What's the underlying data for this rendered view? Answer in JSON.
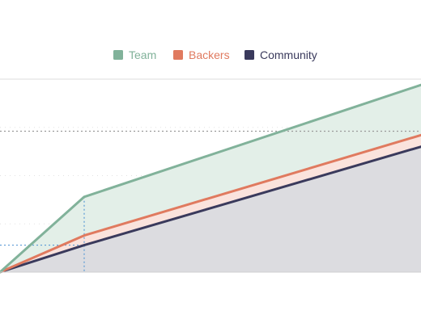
{
  "chart_data": {
    "type": "area",
    "stacked": true,
    "title": "",
    "xlabel": "",
    "ylabel": "",
    "x": [
      0,
      1,
      5
    ],
    "xlim": [
      0,
      5
    ],
    "ylim": [
      0,
      10
    ],
    "grid": true,
    "legend_position": "top-center",
    "series": [
      {
        "name": "Community",
        "color": "#3a3a5c",
        "fill": "#dcdce0",
        "values": [
          0,
          1.4,
          6.5
        ]
      },
      {
        "name": "Backers",
        "color": "#e07a5f",
        "fill": "#fae3dd",
        "values": [
          0,
          0.5,
          0.6
        ]
      },
      {
        "name": "Team",
        "color": "#81b29a",
        "fill": "#e3efe8",
        "values": [
          0,
          2.0,
          2.6
        ]
      }
    ],
    "legend_order": [
      "Team",
      "Backers",
      "Community"
    ],
    "reference_lines": {
      "horizontal_dashed_y": 7.3,
      "highlight_x": 1
    }
  }
}
